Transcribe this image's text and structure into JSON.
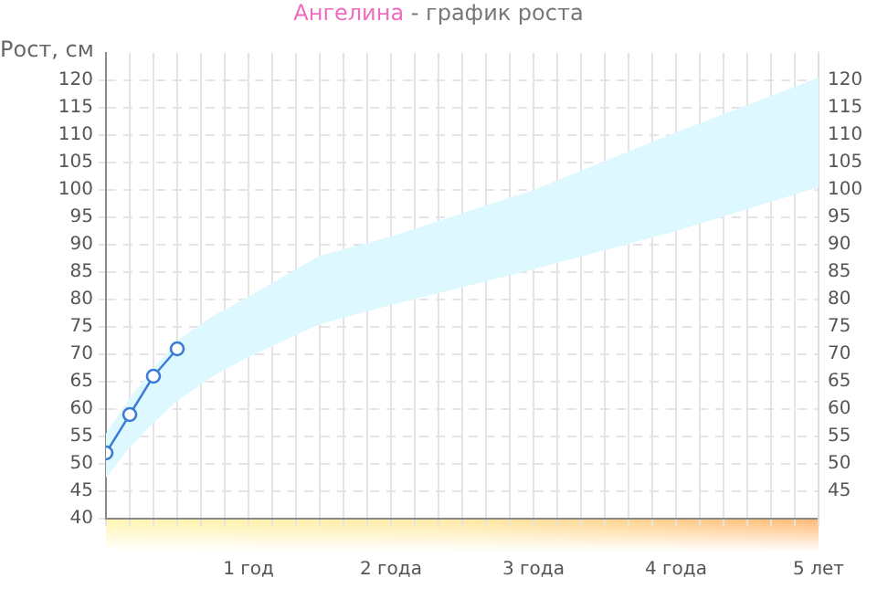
{
  "chart_data": {
    "type": "line",
    "title": "Ангелина",
    "subtitle": "- график роста",
    "ylabel": "Рост, см",
    "xlim": [
      0,
      5
    ],
    "xticks": [
      {
        "value": 0,
        "label": null
      },
      {
        "value": 0.167,
        "label": null
      },
      {
        "value": 0.333,
        "label": null
      },
      {
        "value": 0.5,
        "label": null
      },
      {
        "value": 0.667,
        "label": null
      },
      {
        "value": 0.833,
        "label": null
      },
      {
        "value": 1,
        "label": "1 год"
      },
      {
        "value": 1.167,
        "label": null
      },
      {
        "value": 1.333,
        "label": null
      },
      {
        "value": 1.5,
        "label": null
      },
      {
        "value": 1.667,
        "label": null
      },
      {
        "value": 1.833,
        "label": null
      },
      {
        "value": 2,
        "label": "2 года"
      },
      {
        "value": 2.167,
        "label": null
      },
      {
        "value": 2.333,
        "label": null
      },
      {
        "value": 2.5,
        "label": null
      },
      {
        "value": 2.667,
        "label": null
      },
      {
        "value": 2.833,
        "label": null
      },
      {
        "value": 3,
        "label": "3 года"
      },
      {
        "value": 3.167,
        "label": null
      },
      {
        "value": 3.333,
        "label": null
      },
      {
        "value": 3.5,
        "label": null
      },
      {
        "value": 3.667,
        "label": null
      },
      {
        "value": 3.833,
        "label": null
      },
      {
        "value": 4,
        "label": "4 года"
      },
      {
        "value": 4.167,
        "label": null
      },
      {
        "value": 4.333,
        "label": null
      },
      {
        "value": 4.5,
        "label": null
      },
      {
        "value": 4.667,
        "label": null
      },
      {
        "value": 4.833,
        "label": null
      },
      {
        "value": 5,
        "label": "5 лет"
      }
    ],
    "ylim": [
      40,
      125
    ],
    "yticks": [
      40,
      45,
      50,
      55,
      60,
      65,
      70,
      75,
      80,
      85,
      90,
      95,
      100,
      105,
      110,
      115,
      120
    ],
    "y2lim": [
      40,
      125
    ],
    "y2ticks": [
      45,
      50,
      55,
      60,
      65,
      70,
      75,
      80,
      85,
      90,
      95,
      100,
      105,
      110,
      115,
      120
    ],
    "grid": true,
    "legend": false,
    "line_style": "solid",
    "series": [
      {
        "type": "area",
        "color": "#ddf8ff",
        "x": [
          0,
          0.167,
          0.333,
          0.5,
          0.75,
          1,
          1.5,
          2,
          3,
          4,
          5
        ],
        "values": [
          null,
          null,
          null,
          null,
          null,
          null,
          null,
          null,
          null,
          null,
          null
        ],
        "upper": [
          55.5,
          62,
          67.5,
          72.5,
          77,
          80.5,
          88,
          91.5,
          100,
          110.5,
          120.5
        ],
        "lower": [
          47.5,
          53,
          57.5,
          61.5,
          66,
          69.5,
          75.5,
          79,
          85.5,
          92.5,
          100.5
        ]
      },
      {
        "color": "#3a7bd5",
        "marker": "circle",
        "x": [
          0,
          0.167,
          0.333,
          0.5
        ],
        "values": [
          52,
          59,
          66,
          71
        ]
      }
    ]
  }
}
